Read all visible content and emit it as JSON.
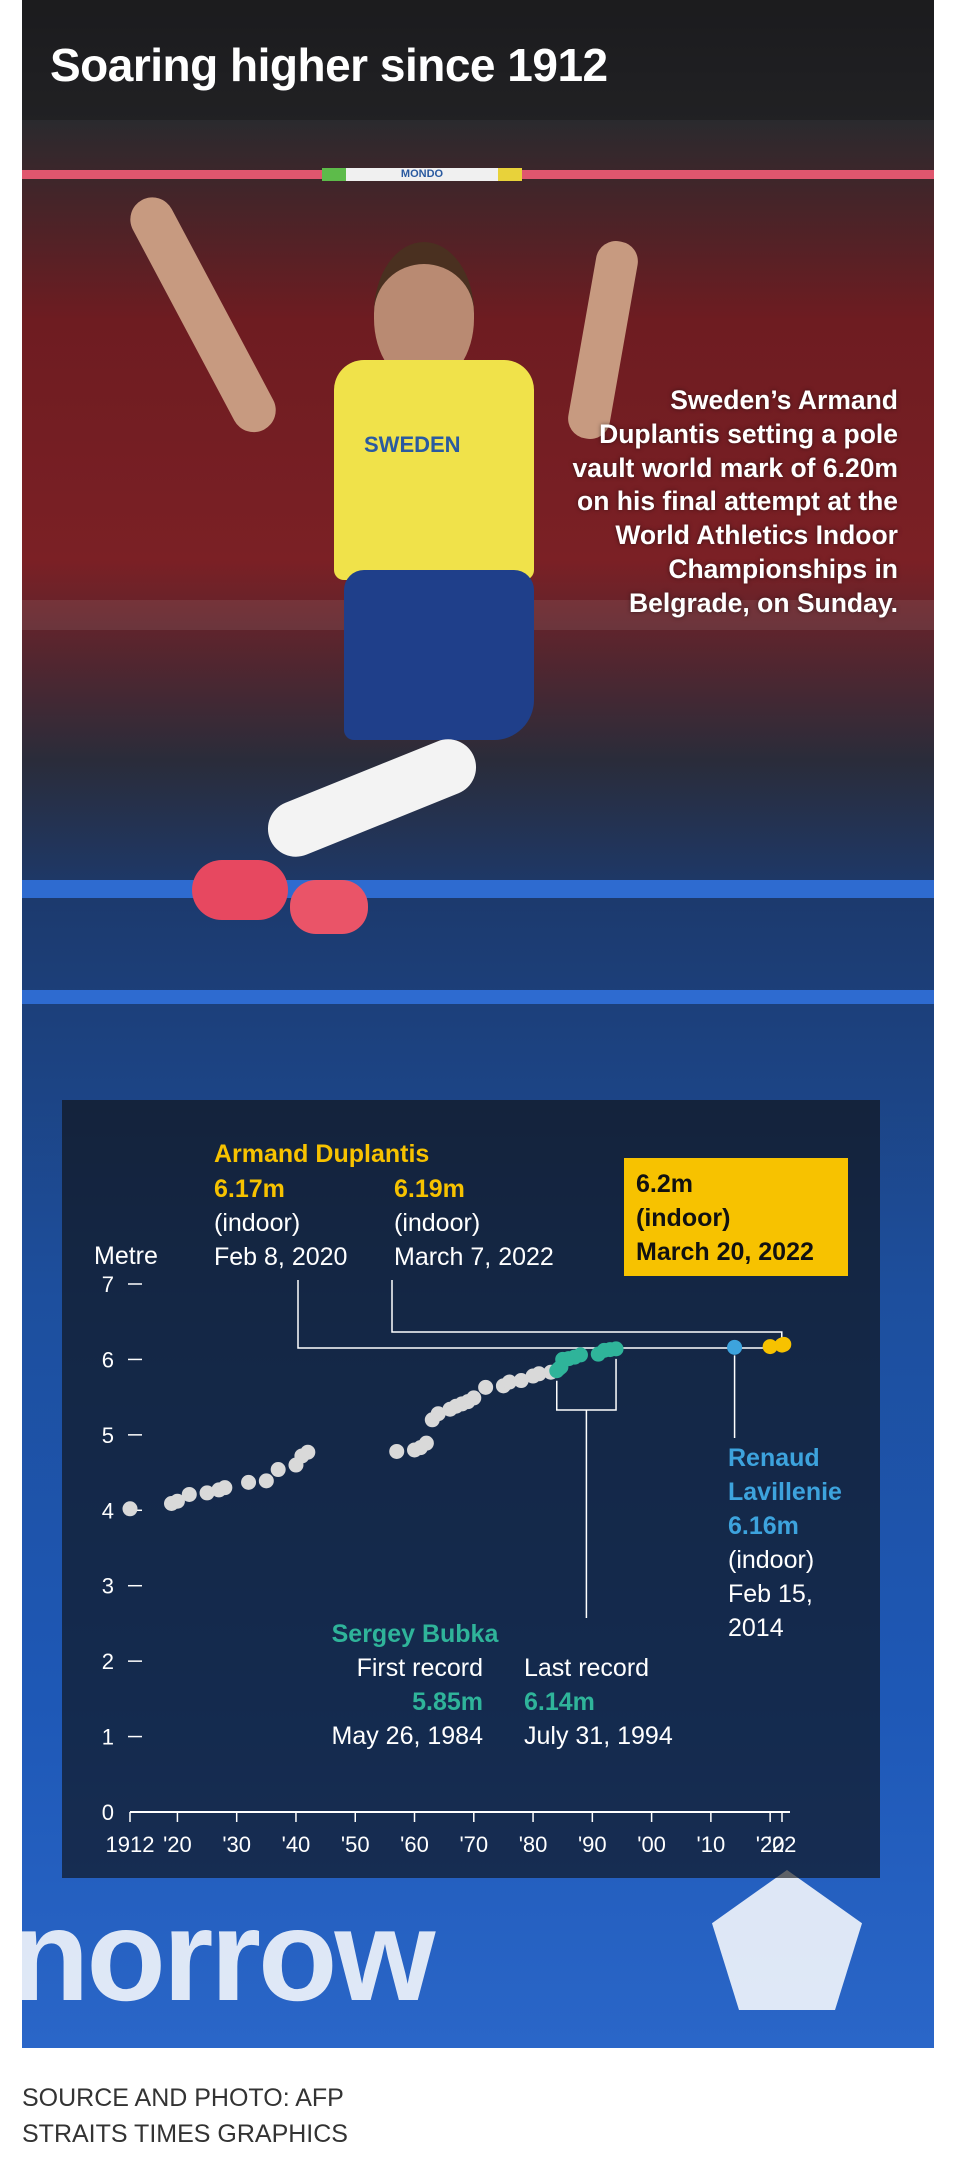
{
  "title": "Soaring higher since 1912",
  "caption": "Sweden’s Armand Duplantis setting a pole vault world mark of 6.20m on his final attempt at the World Athletics Indoor Championships in Belgrade, on Sunday.",
  "photo": {
    "bar_text": "MONDO",
    "jersey_text": "SWEDEN",
    "banner_text": "norrow"
  },
  "colors": {
    "duplantis": "#f7c200",
    "bubka": "#2fb49a",
    "lavillenie": "#3da3dd",
    "other": "#d9d9d9"
  },
  "chart_data": {
    "type": "scatter",
    "ylabel": "Metre",
    "ylim": [
      0,
      7
    ],
    "xlim": [
      1912,
      2022
    ],
    "y_ticks": [
      "0",
      "1",
      "2",
      "3",
      "4",
      "5",
      "6",
      "7"
    ],
    "x_ticks": [
      {
        "value": 1912,
        "label": "1912"
      },
      {
        "value": 1920,
        "label": "'20"
      },
      {
        "value": 1930,
        "label": "'30"
      },
      {
        "value": 1940,
        "label": "'40"
      },
      {
        "value": 1950,
        "label": "'50"
      },
      {
        "value": 1960,
        "label": "'60"
      },
      {
        "value": 1970,
        "label": "'70"
      },
      {
        "value": 1980,
        "label": "'80"
      },
      {
        "value": 1990,
        "label": "'90"
      },
      {
        "value": 2000,
        "label": "'00"
      },
      {
        "value": 2010,
        "label": "'10"
      },
      {
        "value": 2020,
        "label": "'20"
      },
      {
        "value": 2022,
        "label": "'22"
      }
    ],
    "series": [
      {
        "name": "",
        "color": "#d9d9d9",
        "points": [
          [
            1912,
            4.02
          ],
          [
            1919,
            4.09
          ],
          [
            1920,
            4.12
          ],
          [
            1922,
            4.21
          ],
          [
            1925,
            4.23
          ],
          [
            1927,
            4.27
          ],
          [
            1928,
            4.3
          ],
          [
            1932,
            4.37
          ],
          [
            1935,
            4.39
          ],
          [
            1937,
            4.54
          ],
          [
            1940,
            4.6
          ],
          [
            1941,
            4.72
          ],
          [
            1942,
            4.77
          ],
          [
            1957,
            4.78
          ],
          [
            1960,
            4.8
          ],
          [
            1961,
            4.83
          ],
          [
            1962,
            4.89
          ],
          [
            1963,
            5.2
          ],
          [
            1964,
            5.28
          ],
          [
            1966,
            5.34
          ],
          [
            1967,
            5.38
          ],
          [
            1968,
            5.41
          ],
          [
            1969,
            5.44
          ],
          [
            1970,
            5.49
          ],
          [
            1972,
            5.63
          ],
          [
            1975,
            5.65
          ],
          [
            1976,
            5.7
          ],
          [
            1978,
            5.72
          ],
          [
            1980,
            5.78
          ],
          [
            1981,
            5.81
          ],
          [
            1983,
            5.83
          ]
        ]
      },
      {
        "name": "Sergey Bubka",
        "color": "#2fb49a",
        "points": [
          [
            1984,
            5.85
          ],
          [
            1984.4,
            5.88
          ],
          [
            1984.7,
            5.9
          ],
          [
            1985,
            6.0
          ],
          [
            1986,
            6.01
          ],
          [
            1987,
            6.03
          ],
          [
            1988,
            6.06
          ],
          [
            1991,
            6.07
          ],
          [
            1992,
            6.12
          ],
          [
            1993,
            6.13
          ],
          [
            1994,
            6.14
          ]
        ]
      },
      {
        "name": "Renaud Lavillenie",
        "color": "#3da3dd",
        "points": [
          [
            2014,
            6.16
          ]
        ]
      },
      {
        "name": "Armand Duplantis",
        "color": "#f7c200",
        "points": [
          [
            2020,
            6.17
          ],
          [
            2022,
            6.19
          ],
          [
            2022.3,
            6.2
          ]
        ]
      }
    ],
    "annotations": {
      "duplantis_name": "Armand Duplantis",
      "duplantis_1": {
        "value": "6.17m",
        "note": "(indoor)",
        "date": "Feb 8, 2020"
      },
      "duplantis_2": {
        "value": "6.19m",
        "note": "(indoor)",
        "date": "March 7, 2022"
      },
      "duplantis_3": {
        "value": "6.2m",
        "note": "(indoor)",
        "date": "March 20, 2022"
      },
      "lavillenie": {
        "name_1": "Renaud",
        "name_2": "Lavillenie",
        "value": "6.16m",
        "note": "(indoor)",
        "date_1": "Feb 15,",
        "date_2": "2014"
      },
      "bubka": {
        "name": "Sergey Bubka",
        "first_label": "First record",
        "first_value": "5.85m",
        "first_date": "May 26, 1984",
        "last_label": "Last record",
        "last_value": "6.14m",
        "last_date": "July 31, 1994"
      }
    }
  },
  "footer": {
    "line1": "SOURCE AND PHOTO: AFP",
    "line2": "STRAITS TIMES GRAPHICS"
  }
}
